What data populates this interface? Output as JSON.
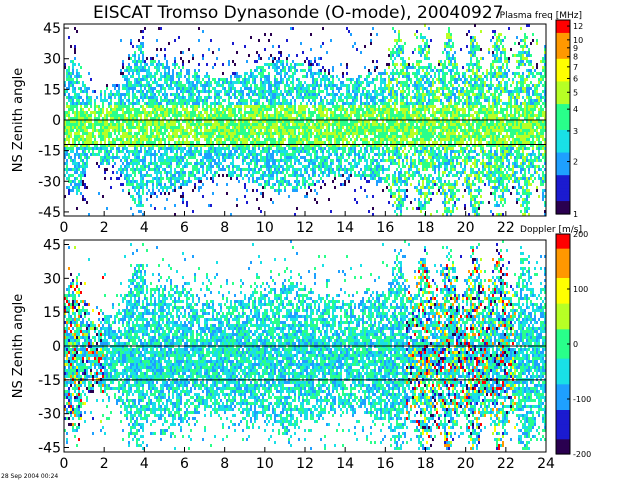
{
  "title": "EISCAT Tromso Dynasonde (O-mode),  20040927",
  "footer_timestamp": "28 Sep 2004 00:24",
  "chart_data": [
    {
      "type": "heatmap",
      "ylabel": "NS Zenith angle",
      "xticks": [
        0,
        2,
        4,
        6,
        8,
        10,
        12,
        14,
        16,
        18,
        20,
        22
      ],
      "xlim": [
        0,
        24
      ],
      "yticks": [
        45,
        30,
        15,
        0,
        -15,
        -30,
        -45
      ],
      "ylim": [
        -47,
        47
      ],
      "reference_lines_y": [
        0,
        -12
      ],
      "colorbar": {
        "title": "Plasma freq [MHz]",
        "scale": "log",
        "range": [
          1,
          13
        ],
        "ticks": [
          12,
          10,
          9,
          8,
          7,
          6,
          5,
          4,
          3,
          2,
          1
        ]
      },
      "colors": [
        "#2a0050",
        "#1b1bd0",
        "#1ea0ff",
        "#19e0e6",
        "#29ff8a",
        "#b7ff25",
        "#ffff00",
        "#ff9800",
        "#ff0000"
      ]
    },
    {
      "type": "heatmap",
      "ylabel": "NS Zenith angle",
      "xticks": [
        0,
        2,
        4,
        6,
        8,
        10,
        12,
        14,
        16,
        18,
        20,
        22,
        24
      ],
      "xlim": [
        0,
        24
      ],
      "yticks": [
        45,
        30,
        15,
        0,
        -15,
        -30,
        -45
      ],
      "ylim": [
        -47,
        47
      ],
      "reference_lines_y": [
        0,
        -15
      ],
      "colorbar": {
        "title": "Doppler [m/s]",
        "scale": "linear",
        "range": [
          -200,
          200
        ],
        "ticks": [
          200,
          100,
          0,
          -100,
          -200
        ]
      },
      "colors": [
        "#2a0050",
        "#1b1bd0",
        "#1ea0ff",
        "#19e0e6",
        "#29ff8a",
        "#b7ff25",
        "#ffff00",
        "#ff9800",
        "#ff0000"
      ]
    }
  ]
}
